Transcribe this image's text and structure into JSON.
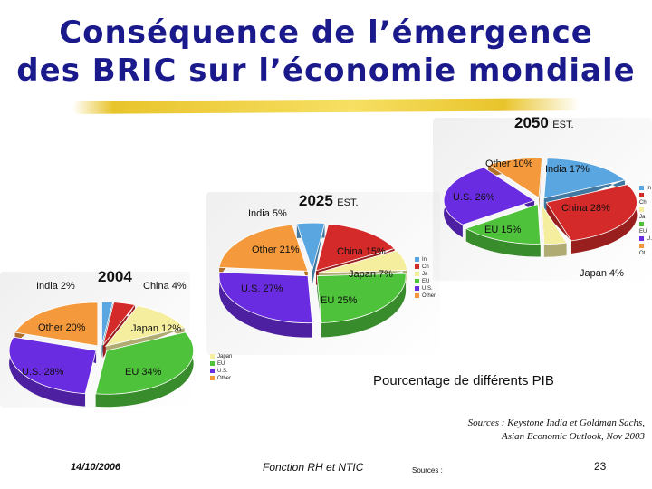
{
  "title": {
    "line1": "Conséquence de l’émergence",
    "line2": "des BRIC sur l’économie mondiale"
  },
  "chart_data": [
    {
      "type": "pie",
      "year": "2004",
      "est": "",
      "slices": [
        {
          "name": "India",
          "label": "India 2%",
          "value": 2,
          "color": "#5aa6e0"
        },
        {
          "name": "China",
          "label": "China 4%",
          "value": 4,
          "color": "#d42a2a"
        },
        {
          "name": "Japan",
          "label": "Japan 12%",
          "value": 12,
          "color": "#f5ee9e"
        },
        {
          "name": "EU",
          "label": "EU 34%",
          "value": 34,
          "color": "#4fc23c"
        },
        {
          "name": "U.S.",
          "label": "U.S. 28%",
          "value": 28,
          "color": "#6a2ce0"
        },
        {
          "name": "Other",
          "label": "Other 20%",
          "value": 20,
          "color": "#f59a3c"
        }
      ],
      "legend": [
        "Japan",
        "EU",
        "U.S.",
        "Other"
      ]
    },
    {
      "type": "pie",
      "year": "2025",
      "est": "EST.",
      "slices": [
        {
          "name": "India",
          "label": "India 5%",
          "value": 5,
          "color": "#5aa6e0"
        },
        {
          "name": "China",
          "label": "China 15%",
          "value": 15,
          "color": "#d42a2a"
        },
        {
          "name": "Japan",
          "label": "Japan 7%",
          "value": 7,
          "color": "#f5ee9e"
        },
        {
          "name": "EU",
          "label": "EU 25%",
          "value": 25,
          "color": "#4fc23c"
        },
        {
          "name": "U.S.",
          "label": "U.S. 27%",
          "value": 27,
          "color": "#6a2ce0"
        },
        {
          "name": "Other",
          "label": "Other 21%",
          "value": 21,
          "color": "#f59a3c"
        }
      ],
      "legend": [
        "In",
        "Ch",
        "Ja",
        "EU",
        "U.S.",
        "Other"
      ]
    },
    {
      "type": "pie",
      "year": "2050",
      "est": "EST.",
      "slices": [
        {
          "name": "India",
          "label": "India 17%",
          "value": 17,
          "color": "#5aa6e0"
        },
        {
          "name": "China",
          "label": "China 28%",
          "value": 28,
          "color": "#d42a2a"
        },
        {
          "name": "Japan",
          "label": "Japan 4%",
          "value": 4,
          "color": "#f5ee9e"
        },
        {
          "name": "EU",
          "label": "EU 15%",
          "value": 15,
          "color": "#4fc23c"
        },
        {
          "name": "U.S.",
          "label": "U.S. 26%",
          "value": 26,
          "color": "#6a2ce0"
        },
        {
          "name": "Other",
          "label": "Other 10%",
          "value": 10,
          "color": "#f59a3c"
        }
      ],
      "legend": [
        "In",
        "Ch",
        "Ja",
        "EU",
        "U.",
        "Ot"
      ]
    }
  ],
  "caption": "Pourcentage de différents PIB",
  "sources": {
    "line1": "Sources : Keystone India et Goldman Sachs,",
    "line2": "Asian Economic Outlook, Nov 2003"
  },
  "footer": {
    "date": "14/10/2006",
    "center": "Fonction RH et NTIC",
    "sources_label": "Sources :",
    "page": "23"
  }
}
